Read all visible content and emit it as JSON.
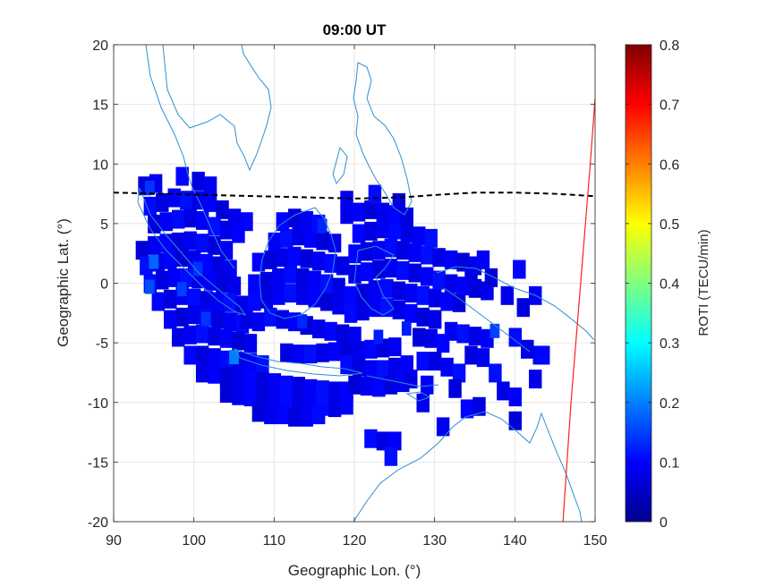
{
  "chart_data": {
    "type": "heatmap",
    "title": "09:00 UT",
    "xlabel": "Geographic Lon. (°)",
    "ylabel": "Geographic Lat. (°)",
    "xlim": [
      90,
      150
    ],
    "ylim": [
      -20,
      20
    ],
    "xticks": [
      90,
      100,
      110,
      120,
      130,
      140,
      150
    ],
    "yticks": [
      -20,
      -15,
      -10,
      -5,
      0,
      5,
      10,
      15,
      20
    ],
    "grid": true,
    "colorbar": {
      "label": "ROTI (TECU/min)",
      "range": [
        0,
        0.8
      ],
      "ticks": [
        0,
        0.1,
        0.2,
        0.3,
        0.4,
        0.5,
        0.6,
        0.7,
        0.8
      ],
      "colormap": "jet"
    },
    "cell_size_deg": 1.5,
    "roti_cells_base": 0.07,
    "roti_cells_lon_lat": [
      [
        93.8,
        8.2
      ],
      [
        95.2,
        8.4
      ],
      [
        98.5,
        9.0
      ],
      [
        100.5,
        8.6
      ],
      [
        102,
        8.2
      ],
      [
        94.5,
        6.5
      ],
      [
        96,
        6.8
      ],
      [
        97.5,
        7.2
      ],
      [
        99,
        7.0
      ],
      [
        100.5,
        7.0
      ],
      [
        102,
        6.8
      ],
      [
        103.5,
        6.2
      ],
      [
        105,
        5.5
      ],
      [
        106.5,
        5.2
      ],
      [
        95,
        5.0
      ],
      [
        96.5,
        5.2
      ],
      [
        98,
        5.4
      ],
      [
        99.5,
        5.5
      ],
      [
        101,
        5.3
      ],
      [
        102.5,
        4.8
      ],
      [
        104,
        4.5
      ],
      [
        105.5,
        4.2
      ],
      [
        93.5,
        2.8
      ],
      [
        95,
        3.2
      ],
      [
        96.5,
        3.4
      ],
      [
        98,
        3.5
      ],
      [
        99.5,
        3.6
      ],
      [
        101,
        3.4
      ],
      [
        102.5,
        3.2
      ],
      [
        104,
        2.8
      ],
      [
        94,
        1.5
      ],
      [
        95.5,
        1.8
      ],
      [
        97,
        2.0
      ],
      [
        98.5,
        2.2
      ],
      [
        100,
        2.0
      ],
      [
        101.5,
        1.7
      ],
      [
        103,
        1.5
      ],
      [
        104.5,
        1.2
      ],
      [
        94.5,
        0.0
      ],
      [
        96,
        0.3
      ],
      [
        97.5,
        0.5
      ],
      [
        99,
        0.5
      ],
      [
        100.5,
        0.4
      ],
      [
        102,
        0.2
      ],
      [
        103.5,
        0.0
      ],
      [
        105,
        -0.2
      ],
      [
        95.5,
        -1.5
      ],
      [
        97,
        -1.3
      ],
      [
        98.5,
        -1.0
      ],
      [
        100,
        -1.2
      ],
      [
        101.5,
        -1.4
      ],
      [
        103,
        -1.5
      ],
      [
        104.5,
        -1.6
      ],
      [
        106,
        -1.8
      ],
      [
        97,
        -3.0
      ],
      [
        98.5,
        -2.8
      ],
      [
        100,
        -2.6
      ],
      [
        101.5,
        -2.8
      ],
      [
        103,
        -3.0
      ],
      [
        104.5,
        -3.2
      ],
      [
        106,
        -3.4
      ],
      [
        98,
        -4.5
      ],
      [
        99.5,
        -4.3
      ],
      [
        101,
        -4.2
      ],
      [
        102.5,
        -4.4
      ],
      [
        104,
        -4.6
      ],
      [
        105.5,
        -4.8
      ],
      [
        107,
        -5.0
      ],
      [
        99.5,
        -6.0
      ],
      [
        101,
        -6.0
      ],
      [
        102.5,
        -6.2
      ],
      [
        104,
        -6.4
      ],
      [
        105.5,
        -6.5
      ],
      [
        107,
        -6.6
      ],
      [
        108.5,
        -6.8
      ],
      [
        101,
        -7.5
      ],
      [
        102.5,
        -7.6
      ],
      [
        104,
        -7.8
      ],
      [
        105.5,
        -8.0
      ],
      [
        107,
        -8.0
      ],
      [
        108.5,
        -8.2
      ],
      [
        110,
        -8.3
      ],
      [
        111.5,
        -8.5
      ],
      [
        113,
        -8.6
      ],
      [
        114.5,
        -8.8
      ],
      [
        116,
        -8.9
      ],
      [
        117.5,
        -9.0
      ],
      [
        119,
        -9.0
      ],
      [
        104,
        -9.2
      ],
      [
        105.5,
        -9.4
      ],
      [
        107,
        -9.5
      ],
      [
        108.5,
        -9.6
      ],
      [
        110,
        -9.8
      ],
      [
        111.5,
        -9.9
      ],
      [
        113,
        -10.0
      ],
      [
        114.5,
        -10.2
      ],
      [
        116,
        -10.3
      ],
      [
        117.5,
        -10.4
      ],
      [
        119,
        -10.2
      ],
      [
        108,
        -10.8
      ],
      [
        109.5,
        -11.0
      ],
      [
        111,
        -11.0
      ],
      [
        112.5,
        -11.2
      ],
      [
        114,
        -11.2
      ],
      [
        115.5,
        -11.0
      ],
      [
        106.5,
        -3.0
      ],
      [
        108,
        -3.2
      ],
      [
        109.5,
        -2.8
      ],
      [
        111,
        -3.0
      ],
      [
        112.5,
        -3.2
      ],
      [
        114,
        -3.5
      ],
      [
        115.5,
        -3.8
      ],
      [
        117,
        -4.0
      ],
      [
        118.5,
        -4.2
      ],
      [
        120,
        -4.4
      ],
      [
        107.5,
        -1.5
      ],
      [
        109,
        -1.3
      ],
      [
        110.5,
        -1.0
      ],
      [
        112,
        -0.8
      ],
      [
        113.5,
        -1.0
      ],
      [
        115,
        -1.2
      ],
      [
        116.5,
        -1.5
      ],
      [
        118,
        -1.8
      ],
      [
        107.5,
        0.0
      ],
      [
        109,
        0.2
      ],
      [
        110.5,
        0.5
      ],
      [
        112,
        0.8
      ],
      [
        113.5,
        0.5
      ],
      [
        115,
        0.3
      ],
      [
        116.5,
        0.0
      ],
      [
        118,
        -0.3
      ],
      [
        108,
        1.8
      ],
      [
        109.5,
        2.0
      ],
      [
        111,
        2.2
      ],
      [
        112.5,
        2.3
      ],
      [
        114,
        2.1
      ],
      [
        115.5,
        1.9
      ],
      [
        117,
        1.7
      ],
      [
        118.5,
        1.5
      ],
      [
        110,
        3.5
      ],
      [
        111.5,
        3.8
      ],
      [
        113,
        4.0
      ],
      [
        114.5,
        3.8
      ],
      [
        116,
        3.6
      ],
      [
        117.5,
        3.4
      ],
      [
        111,
        5.2
      ],
      [
        112.5,
        5.5
      ],
      [
        114,
        5.3
      ],
      [
        115.5,
        5.0
      ],
      [
        111.5,
        -5.8
      ],
      [
        113,
        -5.9
      ],
      [
        114.5,
        -5.9
      ],
      [
        116,
        -5.8
      ],
      [
        117.5,
        -5.7
      ],
      [
        119,
        -5.6
      ],
      [
        120.5,
        -5.6
      ],
      [
        122,
        -5.5
      ],
      [
        123.5,
        -5.4
      ],
      [
        125,
        -5.3
      ],
      [
        119,
        -6.8
      ],
      [
        120.5,
        -7.0
      ],
      [
        122,
        -7.2
      ],
      [
        123.5,
        -7.2
      ],
      [
        125,
        -7.0
      ],
      [
        126.5,
        -6.8
      ],
      [
        120,
        -8.5
      ],
      [
        121.5,
        -8.6
      ],
      [
        123,
        -8.7
      ],
      [
        124.5,
        -8.5
      ],
      [
        126,
        -8.3
      ],
      [
        119.5,
        -2.5
      ],
      [
        121,
        -2.3
      ],
      [
        122.5,
        -2.0
      ],
      [
        124,
        -2.0
      ],
      [
        125.5,
        -2.2
      ],
      [
        127,
        -2.5
      ],
      [
        128.5,
        -2.8
      ],
      [
        130,
        -3.0
      ],
      [
        119.5,
        -1.0
      ],
      [
        121,
        -0.8
      ],
      [
        122.5,
        -0.5
      ],
      [
        124,
        -0.4
      ],
      [
        125.5,
        -0.6
      ],
      [
        127,
        -0.8
      ],
      [
        128.5,
        -1.0
      ],
      [
        130,
        -1.2
      ],
      [
        131.5,
        -1.5
      ],
      [
        133,
        -1.6
      ],
      [
        120,
        0.8
      ],
      [
        121.5,
        1.0
      ],
      [
        123,
        1.2
      ],
      [
        124.5,
        1.3
      ],
      [
        126,
        1.1
      ],
      [
        127.5,
        0.9
      ],
      [
        129,
        0.6
      ],
      [
        130.5,
        0.3
      ],
      [
        132,
        0.0
      ],
      [
        133.5,
        -0.2
      ],
      [
        135,
        -0.4
      ],
      [
        136.5,
        -0.6
      ],
      [
        120,
        2.5
      ],
      [
        121.5,
        2.7
      ],
      [
        123,
        2.8
      ],
      [
        124.5,
        3.0
      ],
      [
        126,
        2.8
      ],
      [
        127.5,
        2.6
      ],
      [
        129,
        2.4
      ],
      [
        130.5,
        2.2
      ],
      [
        132,
        2.0
      ],
      [
        133.5,
        1.8
      ],
      [
        135,
        1.5
      ],
      [
        120.5,
        4.2
      ],
      [
        122,
        4.4
      ],
      [
        123.5,
        4.6
      ],
      [
        125,
        4.5
      ],
      [
        126.5,
        4.2
      ],
      [
        128,
        4.0
      ],
      [
        129.5,
        3.8
      ],
      [
        119,
        5.8
      ],
      [
        120.5,
        6.0
      ],
      [
        122,
        6.2
      ],
      [
        123.5,
        6.0
      ],
      [
        125,
        5.8
      ],
      [
        126.5,
        5.6
      ],
      [
        119,
        7.0
      ],
      [
        122.5,
        7.5
      ],
      [
        125.5,
        6.8
      ],
      [
        132,
        -4.0
      ],
      [
        133.5,
        -4.2
      ],
      [
        135,
        -4.4
      ],
      [
        136.5,
        -4.6
      ],
      [
        128,
        -4.5
      ],
      [
        129.5,
        -4.6
      ],
      [
        131,
        -5.0
      ],
      [
        134.5,
        -6.0
      ],
      [
        136,
        -6.2
      ],
      [
        128.5,
        -6.5
      ],
      [
        130,
        -6.5
      ],
      [
        131.5,
        -7.0
      ],
      [
        133,
        -7.5
      ],
      [
        127,
        -8.0
      ],
      [
        129,
        -8.5
      ],
      [
        132.5,
        -8.8
      ],
      [
        128.5,
        -10.0
      ],
      [
        134,
        -10.5
      ],
      [
        135.5,
        -10.3
      ],
      [
        131,
        -12.0
      ],
      [
        122,
        -13.0
      ],
      [
        123.5,
        -13.2
      ],
      [
        125,
        -13.2
      ],
      [
        124.5,
        -14.5
      ],
      [
        134.5,
        1.0
      ],
      [
        136,
        2.0
      ],
      [
        137,
        0.5
      ],
      [
        139,
        -1.0
      ],
      [
        140.5,
        1.2
      ],
      [
        141,
        -2.0
      ],
      [
        142.5,
        -1.0
      ],
      [
        140,
        -4.5
      ],
      [
        141.5,
        -5.5
      ],
      [
        143,
        -6.0
      ],
      [
        137.5,
        -7.5
      ],
      [
        138.5,
        -9.0
      ],
      [
        140,
        -9.5
      ],
      [
        140,
        -11.5
      ],
      [
        142.5,
        -8.0
      ],
      [
        143.5,
        -6.0
      ]
    ],
    "roti_hotspots_lon_lat_value": [
      [
        94.5,
        8.0,
        0.14
      ],
      [
        95,
        1.8,
        0.18
      ],
      [
        94.5,
        -0.3,
        0.16
      ],
      [
        98.5,
        -0.5,
        0.15
      ],
      [
        100.5,
        1.2,
        0.14
      ],
      [
        105,
        -6.2,
        0.2
      ],
      [
        101.5,
        -3.0,
        0.14
      ],
      [
        113.5,
        -3.2,
        0.13
      ],
      [
        116,
        4.8,
        0.13
      ],
      [
        123,
        -4.5,
        0.12
      ],
      [
        126.5,
        -3.8,
        0.12
      ],
      [
        137.5,
        -4.0,
        0.15
      ]
    ],
    "magnetic_equator_lon_lat": [
      [
        90,
        7.6
      ],
      [
        96,
        7.5
      ],
      [
        102,
        7.4
      ],
      [
        108,
        7.3
      ],
      [
        114,
        7.2
      ],
      [
        120,
        7.1
      ],
      [
        126,
        7.2
      ],
      [
        130,
        7.4
      ],
      [
        135,
        7.6
      ],
      [
        140,
        7.6
      ],
      [
        145,
        7.5
      ],
      [
        150,
        7.3
      ]
    ],
    "terminator_lon_lat": [
      [
        146.0,
        -20
      ],
      [
        146.5,
        -15
      ],
      [
        147.0,
        -10
      ],
      [
        147.6,
        -5
      ],
      [
        148.2,
        0
      ],
      [
        148.8,
        5
      ],
      [
        149.4,
        10
      ],
      [
        150,
        15.5
      ]
    ],
    "colors": {
      "coastline": "#2f8fd0",
      "magnetic_equator": "#000000",
      "terminator": "#ff1f1f",
      "grid": "#e6e6e6"
    }
  }
}
